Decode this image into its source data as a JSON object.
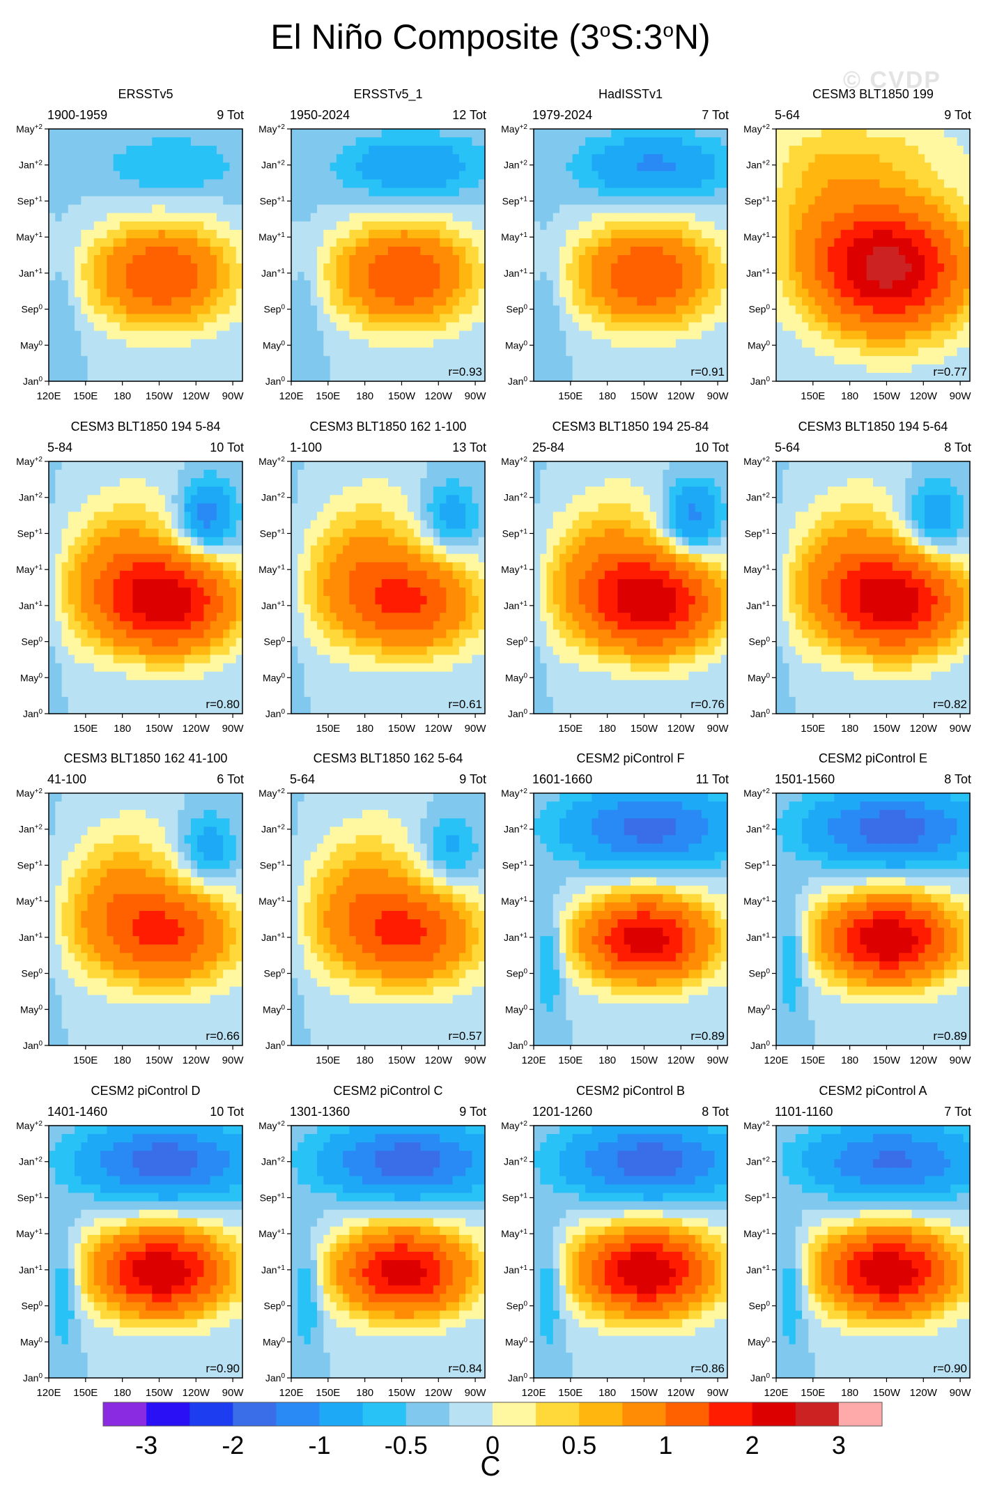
{
  "title": "El Niño Composite (3°S:3°N)",
  "title_parts": {
    "pre": "El Niño Composite (3",
    "o1": "o",
    "mid": "S:3",
    "o2": "o",
    "post": "N)"
  },
  "watermark": "© CVDP",
  "colorbar": {
    "unit": "C",
    "colors": [
      "#8a2be2",
      "#2a10f5",
      "#1d3df0",
      "#3a6ee8",
      "#2a8af5",
      "#1ea9f7",
      "#28c2f7",
      "#80c8ee",
      "#b8e2f4",
      "#fff8a0",
      "#ffd83a",
      "#ffb60e",
      "#ff8c04",
      "#ff6000",
      "#ff1c00",
      "#dd0000",
      "#cc2222",
      "#ffaaaa"
    ],
    "labels": [
      "-3",
      "-2",
      "-1",
      "-0.5",
      "0",
      "0.5",
      "1",
      "2",
      "3"
    ]
  },
  "chart_data": {
    "type": "heatmap",
    "variable": "SST anomaly composite (C)",
    "y_ticks": [
      {
        "m": "Jan",
        "s": "0"
      },
      {
        "m": "May",
        "s": "0"
      },
      {
        "m": "Sep",
        "s": "0"
      },
      {
        "m": "Jan",
        "s": "+1"
      },
      {
        "m": "May",
        "s": "+1"
      },
      {
        "m": "Sep",
        "s": "+1"
      },
      {
        "m": "Jan",
        "s": "+2"
      },
      {
        "m": "May",
        "s": "+2"
      }
    ],
    "x_ticks_full": [
      "120E",
      "150E",
      "180",
      "150W",
      "120W",
      "90W"
    ],
    "x_ticks_short": [
      "150E",
      "180",
      "150W",
      "120W",
      "90W"
    ],
    "panels": [
      {
        "title": "ERSSTv5",
        "years": "1900-1959",
        "count": "9 Tot",
        "r": "",
        "peak": 2.0,
        "cold": -0.5,
        "shape": "obs",
        "xfull": true
      },
      {
        "title": "ERSSTv5_1",
        "years": "1950-2024",
        "count": "12 Tot",
        "r": "r=0.93",
        "peak": 2.0,
        "cold": -0.9,
        "shape": "obs",
        "xfull": true
      },
      {
        "title": "HadISSTv1",
        "years": "1979-2024",
        "count": "7 Tot",
        "r": "r=0.91",
        "peak": 2.0,
        "cold": -1.1,
        "shape": "obs",
        "xfull": false
      },
      {
        "title": "CESM3 BLT1850 199",
        "years": "5-64",
        "count": "9 Tot",
        "r": "r=0.77",
        "peak": 3.2,
        "cold": 0.2,
        "shape": "warm",
        "xfull": false
      },
      {
        "title": "CESM3 BLT1850 194 5-84",
        "years": "5-84",
        "count": "10 Tot",
        "r": "r=0.80",
        "peak": 2.8,
        "cold": -1.3,
        "shape": "diag",
        "xfull": false
      },
      {
        "title": "CESM3 BLT1850 162 1-100",
        "years": "1-100",
        "count": "13 Tot",
        "r": "r=0.61",
        "peak": 2.0,
        "cold": -0.8,
        "shape": "diag",
        "xfull": false
      },
      {
        "title": "CESM3 BLT1850 194 25-84",
        "years": "25-84",
        "count": "10 Tot",
        "r": "r=0.76",
        "peak": 2.8,
        "cold": -1.2,
        "shape": "diag",
        "xfull": false
      },
      {
        "title": "CESM3 BLT1850 194 5-64",
        "years": "5-64",
        "count": "8 Tot",
        "r": "r=0.82",
        "peak": 2.8,
        "cold": -0.9,
        "shape": "diag",
        "xfull": false
      },
      {
        "title": "CESM3 BLT1850 162 41-100",
        "years": "41-100",
        "count": "6 Tot",
        "r": "r=0.66",
        "peak": 2.0,
        "cold": -0.8,
        "shape": "diag",
        "xfull": false
      },
      {
        "title": "CESM3 BLT1850 162 5-64",
        "years": "5-64",
        "count": "9 Tot",
        "r": "r=0.57",
        "peak": 2.0,
        "cold": -0.7,
        "shape": "diag",
        "xfull": false
      },
      {
        "title": "CESM2 piControl F",
        "years": "1601-1660",
        "count": "11 Tot",
        "r": "r=0.89",
        "peak": 2.8,
        "cold": -1.7,
        "shape": "cesm2",
        "xfull": true
      },
      {
        "title": "CESM2 piControl E",
        "years": "1501-1560",
        "count": "8 Tot",
        "r": "r=0.89",
        "peak": 3.0,
        "cold": -1.8,
        "shape": "cesm2",
        "xfull": true
      },
      {
        "title": "CESM2 piControl D",
        "years": "1401-1460",
        "count": "10 Tot",
        "r": "r=0.90",
        "peak": 3.0,
        "cold": -1.8,
        "shape": "cesm2",
        "xfull": true
      },
      {
        "title": "CESM2 piControl C",
        "years": "1301-1360",
        "count": "9 Tot",
        "r": "r=0.84",
        "peak": 2.8,
        "cold": -1.8,
        "shape": "cesm2",
        "xfull": true
      },
      {
        "title": "CESM2 piControl B",
        "years": "1201-1260",
        "count": "8 Tot",
        "r": "r=0.86",
        "peak": 3.0,
        "cold": -1.8,
        "shape": "cesm2",
        "xfull": true
      },
      {
        "title": "CESM2 piControl A",
        "years": "1101-1160",
        "count": "7 Tot",
        "r": "r=0.90",
        "peak": 3.0,
        "cold": -1.6,
        "shape": "cesm2",
        "xfull": true
      }
    ]
  }
}
